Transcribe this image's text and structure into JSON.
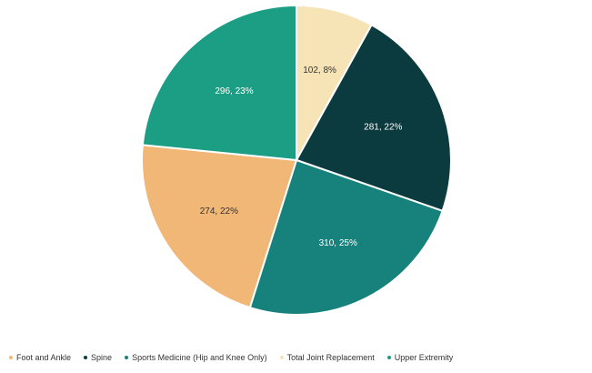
{
  "chart_data": {
    "type": "pie",
    "categories": [
      "Foot and Ankle",
      "Spine",
      "Sports Medicine (Hip and Knee Only)",
      "Total Joint Replacement",
      "Upper Extremity"
    ],
    "values": [
      274,
      281,
      310,
      102,
      296
    ],
    "slices": [
      {
        "category": "Total Joint Replacement",
        "value": 102,
        "label": "102, 8%",
        "color": "#f7e4b6",
        "text_color": "#333333"
      },
      {
        "category": "Spine",
        "value": 281,
        "label": "281, 22%",
        "color": "#0b3b3f",
        "text_color": "#ffffff"
      },
      {
        "category": "Sports Medicine (Hip and Knee Only)",
        "value": 310,
        "label": "310, 25%",
        "color": "#17817c",
        "text_color": "#ffffff"
      },
      {
        "category": "Foot and Ankle",
        "value": 274,
        "label": "274, 22%",
        "color": "#f1b777",
        "text_color": "#333333"
      },
      {
        "category": "Upper Extremity",
        "value": 296,
        "label": "296, 23%",
        "color": "#1b9e83",
        "text_color": "#ffffff"
      }
    ],
    "legend": {
      "placement": "bottom",
      "entries": [
        {
          "name": "Foot and Ankle",
          "color": "#f1b777"
        },
        {
          "name": "Spine",
          "color": "#0b3b3f"
        },
        {
          "name": "Sports Medicine (Hip and Knee Only)",
          "color": "#17817c"
        },
        {
          "name": "Total Joint Replacement",
          "color": "#f7e4b6"
        },
        {
          "name": "Upper Extremity",
          "color": "#1b9e83"
        }
      ]
    }
  }
}
